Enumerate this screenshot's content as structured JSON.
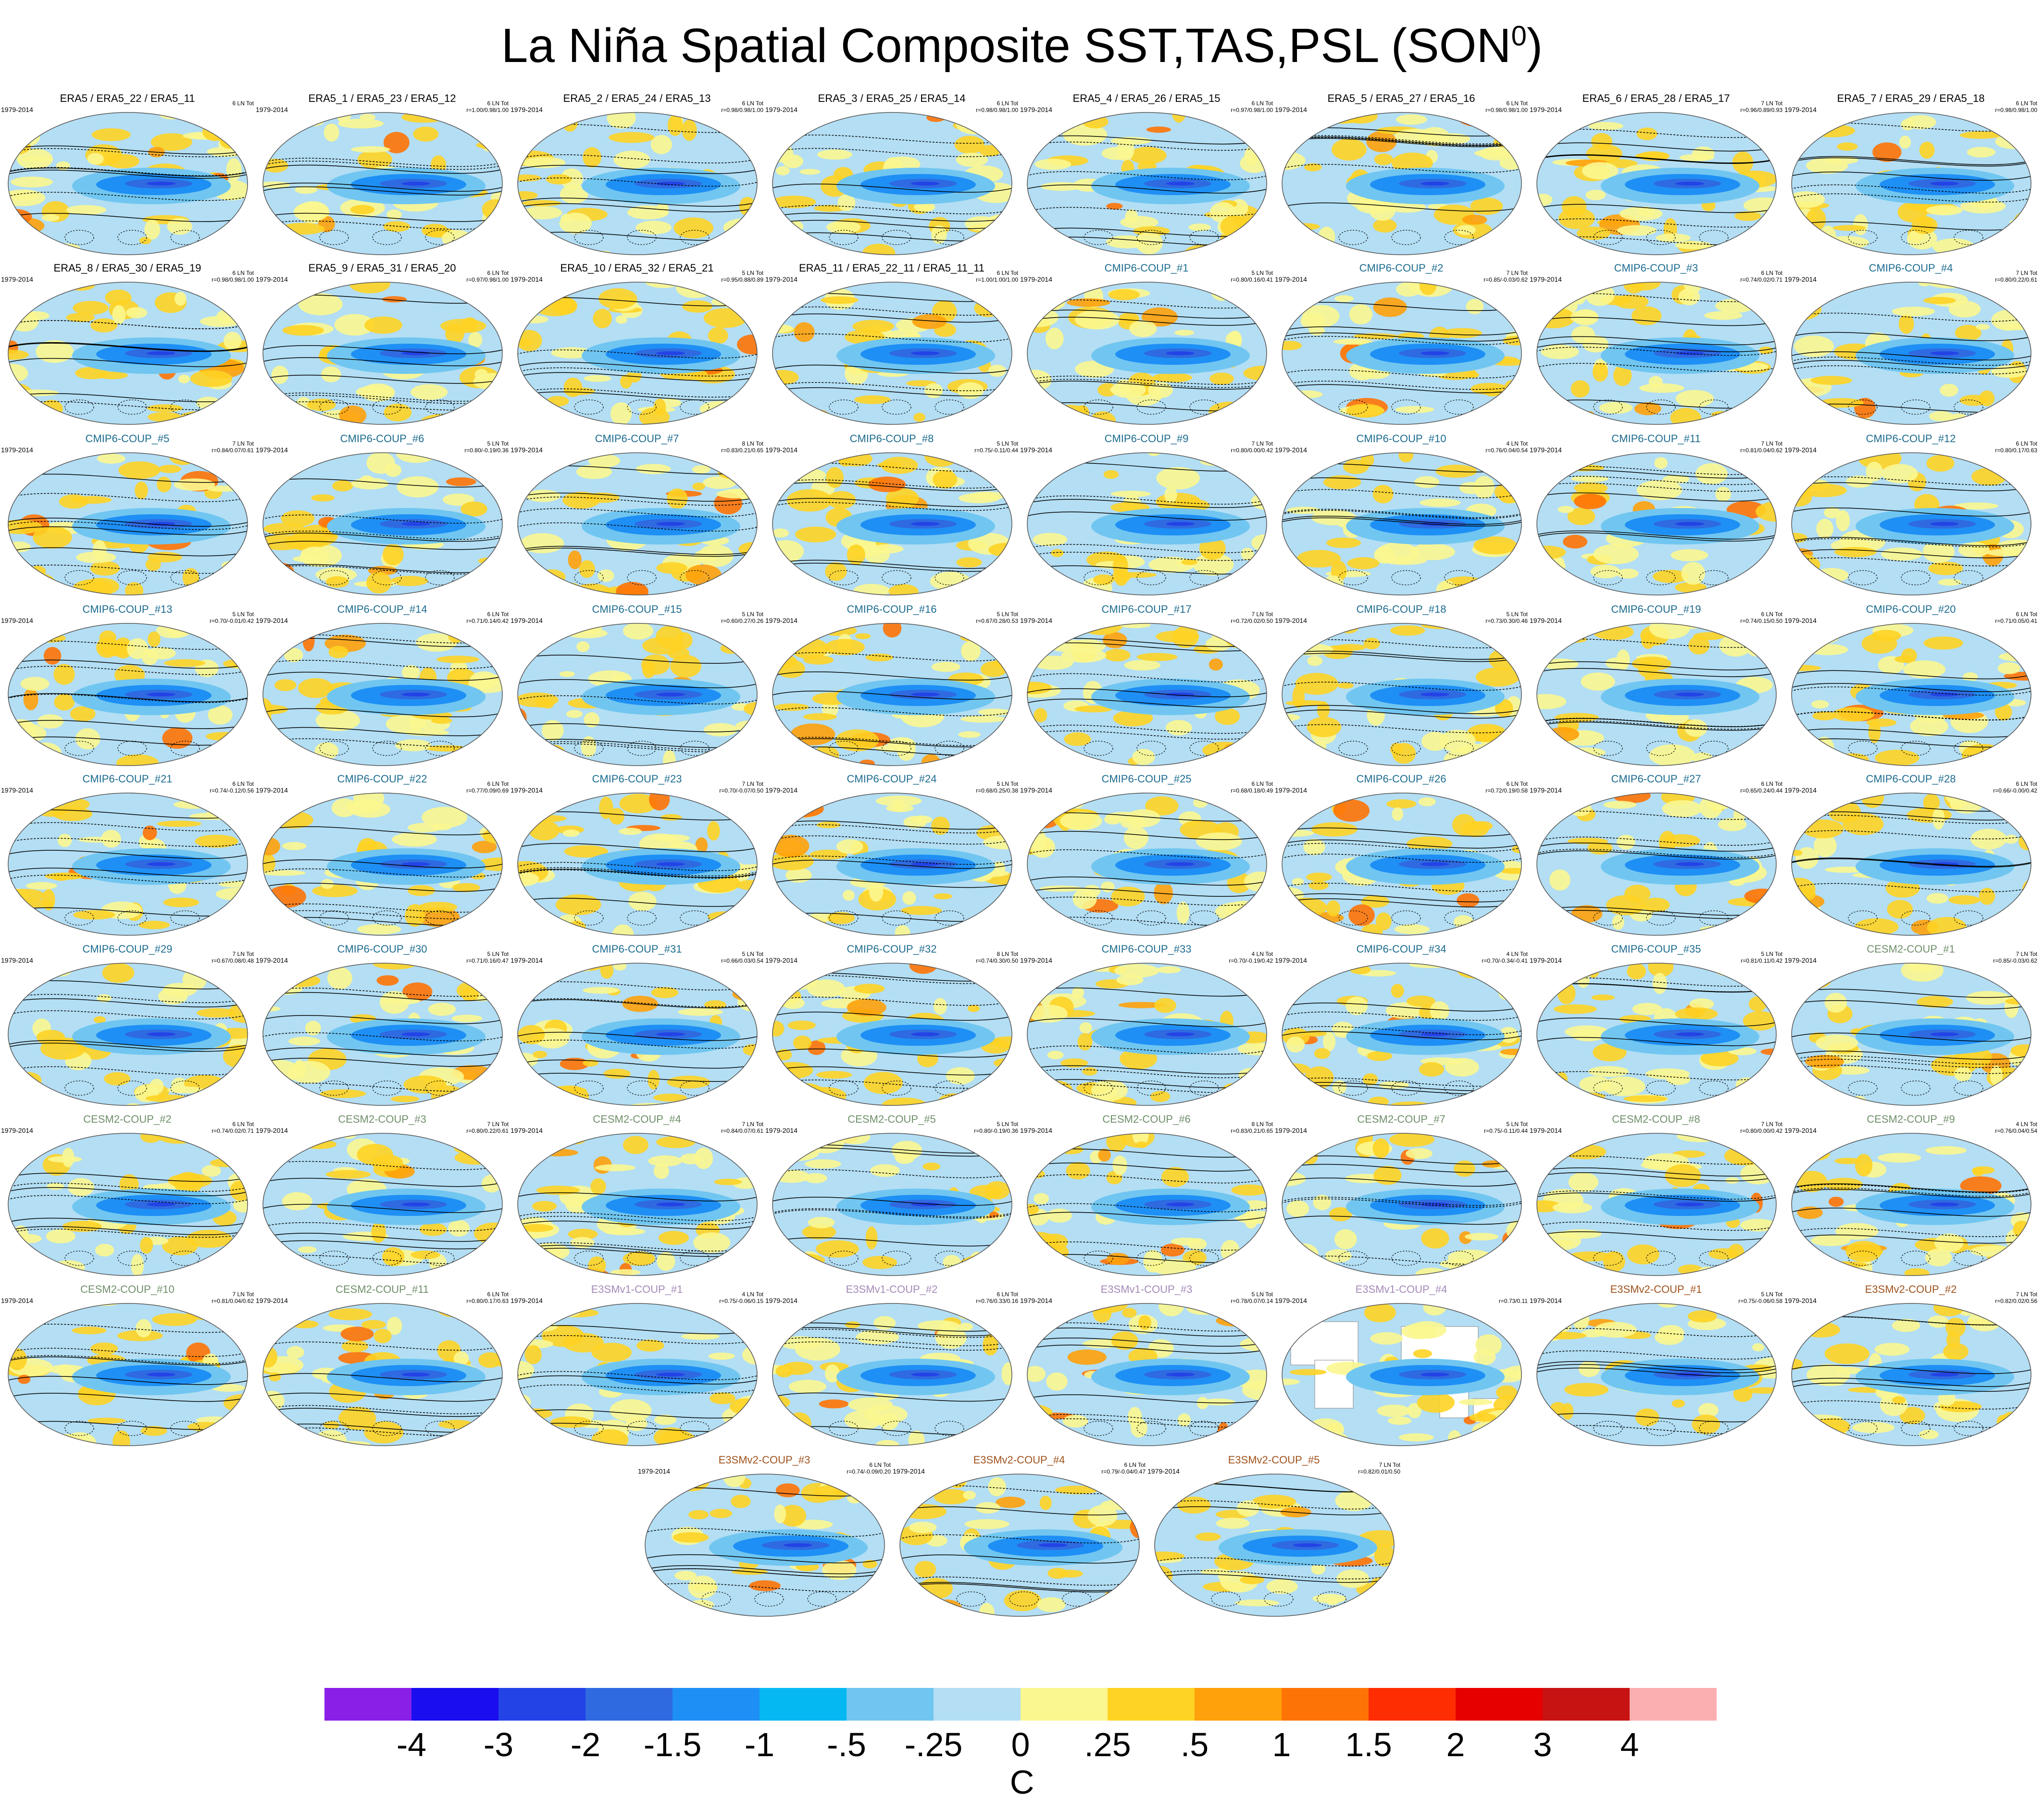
{
  "title": "La Niña Spatial Composite SST,TAS,PSL (SON",
  "title_sup": "0",
  "title_close": ")",
  "colors": {
    "era5": "#000000",
    "cmip6": "#1b6b8f",
    "cesm2": "#6f8f6a",
    "e3smv1": "#a48ab8",
    "e3smv2": "#a0521c"
  },
  "rows": [
    {
      "panels": [
        {
          "title": "ERA5 / ERA5_22 / ERA5_11",
          "years": "1979-2014",
          "count": "6 LN Tot",
          "stats": "",
          "group": "era5",
          "variant": "full"
        },
        {
          "title": "ERA5_1 / ERA5_23 / ERA5_12",
          "years": "1979-2014",
          "count": "6 LN Tot",
          "stats": "r=1.00/0.98/1.00",
          "group": "era5",
          "variant": "full"
        },
        {
          "title": "ERA5_2 / ERA5_24 / ERA5_13",
          "years": "1979-2014",
          "count": "6 LN Tot",
          "stats": "r=0.98/0.98/1.00",
          "group": "era5",
          "variant": "full"
        },
        {
          "title": "ERA5_3 / ERA5_25 / ERA5_14",
          "years": "1979-2014",
          "count": "6 LN Tot",
          "stats": "r=0.98/0.98/1.00",
          "group": "era5",
          "variant": "full"
        },
        {
          "title": "ERA5_4 / ERA5_26 / ERA5_15",
          "years": "1979-2014",
          "count": "6 LN Tot",
          "stats": "r=0.97/0.98/1.00",
          "group": "era5",
          "variant": "full"
        },
        {
          "title": "ERA5_5 / ERA5_27 / ERA5_16",
          "years": "1979-2014",
          "count": "6 LN Tot",
          "stats": "r=0.98/0.98/1.00",
          "group": "era5",
          "variant": "full"
        },
        {
          "title": "ERA5_6 / ERA5_28 / ERA5_17",
          "years": "1979-2014",
          "count": "7 LN Tot",
          "stats": "r=0.96/0.89/0.93",
          "group": "era5",
          "variant": "full"
        },
        {
          "title": "ERA5_7 / ERA5_29 / ERA5_18",
          "years": "1979-2014",
          "count": "6 LN Tot",
          "stats": "r=0.98/0.98/1.00",
          "group": "era5",
          "variant": "full"
        }
      ]
    },
    {
      "panels": [
        {
          "title": "ERA5_8 / ERA5_30 / ERA5_19",
          "years": "1979-2014",
          "count": "6 LN Tot",
          "stats": "r=0.98/0.98/1.00",
          "group": "era5",
          "variant": "full"
        },
        {
          "title": "ERA5_9 / ERA5_31 / ERA5_20",
          "years": "1979-2014",
          "count": "6 LN Tot",
          "stats": "r=0.97/0.98/1.00",
          "group": "era5",
          "variant": "full"
        },
        {
          "title": "ERA5_10 / ERA5_32 / ERA5_21",
          "years": "1979-2014",
          "count": "5 LN Tot",
          "stats": "r=0.95/0.88/0.89",
          "group": "era5",
          "variant": "full"
        },
        {
          "title": "ERA5_11 / ERA5_22_11 / ERA5_11_11",
          "years": "1979-2014",
          "count": "6 LN Tot",
          "stats": "r=1.00/1.00/1.00",
          "group": "era5",
          "variant": "full"
        },
        {
          "title": "CMIP6-COUP_#1",
          "years": "1979-2014",
          "count": "5 LN Tot",
          "stats": "r=0.80/0.16/0.41",
          "group": "cmip6",
          "variant": "full"
        },
        {
          "title": "CMIP6-COUP_#2",
          "years": "1979-2014",
          "count": "7 LN Tot",
          "stats": "r=0.85/-0.03/0.62",
          "group": "cmip6",
          "variant": "full"
        },
        {
          "title": "CMIP6-COUP_#3",
          "years": "1979-2014",
          "count": "6 LN Tot",
          "stats": "r=0.74/0.02/0.71",
          "group": "cmip6",
          "variant": "full"
        },
        {
          "title": "CMIP6-COUP_#4",
          "years": "1979-2014",
          "count": "7 LN Tot",
          "stats": "r=0.80/0.22/0.61",
          "group": "cmip6",
          "variant": "full"
        }
      ]
    },
    {
      "panels": [
        {
          "title": "CMIP6-COUP_#5",
          "years": "1979-2014",
          "count": "7 LN Tot",
          "stats": "r=0.84/0.07/0.61",
          "group": "cmip6",
          "variant": "full"
        },
        {
          "title": "CMIP6-COUP_#6",
          "years": "1979-2014",
          "count": "5 LN Tot",
          "stats": "r=0.80/-0.19/0.36",
          "group": "cmip6",
          "variant": "full"
        },
        {
          "title": "CMIP6-COUP_#7",
          "years": "1979-2014",
          "count": "8 LN Tot",
          "stats": "r=0.83/0.21/0.65",
          "group": "cmip6",
          "variant": "full"
        },
        {
          "title": "CMIP6-COUP_#8",
          "years": "1979-2014",
          "count": "5 LN Tot",
          "stats": "r=0.75/-0.11/0.44",
          "group": "cmip6",
          "variant": "full"
        },
        {
          "title": "CMIP6-COUP_#9",
          "years": "1979-2014",
          "count": "7 LN Tot",
          "stats": "r=0.80/0.00/0.42",
          "group": "cmip6",
          "variant": "full"
        },
        {
          "title": "CMIP6-COUP_#10",
          "years": "1979-2014",
          "count": "4 LN Tot",
          "stats": "r=0.76/0.04/0.54",
          "group": "cmip6",
          "variant": "full"
        },
        {
          "title": "CMIP6-COUP_#11",
          "years": "1979-2014",
          "count": "7 LN Tot",
          "stats": "r=0.81/0.04/0.62",
          "group": "cmip6",
          "variant": "full"
        },
        {
          "title": "CMIP6-COUP_#12",
          "years": "1979-2014",
          "count": "6 LN Tot",
          "stats": "r=0.80/0.17/0.63",
          "group": "cmip6",
          "variant": "full"
        }
      ]
    },
    {
      "panels": [
        {
          "title": "CMIP6-COUP_#13",
          "years": "1979-2014",
          "count": "5 LN Tot",
          "stats": "r=0.70/-0.01/0.42",
          "group": "cmip6",
          "variant": "full"
        },
        {
          "title": "CMIP6-COUP_#14",
          "years": "1979-2014",
          "count": "6 LN Tot",
          "stats": "r=0.71/0.14/0.42",
          "group": "cmip6",
          "variant": "full"
        },
        {
          "title": "CMIP6-COUP_#15",
          "years": "1979-2014",
          "count": "5 LN Tot",
          "stats": "r=0.60/0.27/0.26",
          "group": "cmip6",
          "variant": "full"
        },
        {
          "title": "CMIP6-COUP_#16",
          "years": "1979-2014",
          "count": "5 LN Tot",
          "stats": "r=0.67/0.28/0.53",
          "group": "cmip6",
          "variant": "full"
        },
        {
          "title": "CMIP6-COUP_#17",
          "years": "1979-2014",
          "count": "7 LN Tot",
          "stats": "r=0.72/0.02/0.50",
          "group": "cmip6",
          "variant": "full"
        },
        {
          "title": "CMIP6-COUP_#18",
          "years": "1979-2014",
          "count": "5 LN Tot",
          "stats": "r=0.73/0.30/0.46",
          "group": "cmip6",
          "variant": "full"
        },
        {
          "title": "CMIP6-COUP_#19",
          "years": "1979-2014",
          "count": "6 LN Tot",
          "stats": "r=0.74/0.15/0.50",
          "group": "cmip6",
          "variant": "full"
        },
        {
          "title": "CMIP6-COUP_#20",
          "years": "1979-2014",
          "count": "6 LN Tot",
          "stats": "r=0.71/0.05/0.41",
          "group": "cmip6",
          "variant": "full"
        }
      ]
    },
    {
      "panels": [
        {
          "title": "CMIP6-COUP_#21",
          "years": "1979-2014",
          "count": "6 LN Tot",
          "stats": "r=0.74/-0.12/0.56",
          "group": "cmip6",
          "variant": "full"
        },
        {
          "title": "CMIP6-COUP_#22",
          "years": "1979-2014",
          "count": "6 LN Tot",
          "stats": "r=0.77/0.09/0.69",
          "group": "cmip6",
          "variant": "full"
        },
        {
          "title": "CMIP6-COUP_#23",
          "years": "1979-2014",
          "count": "7 LN Tot",
          "stats": "r=0.70/-0.07/0.50",
          "group": "cmip6",
          "variant": "full"
        },
        {
          "title": "CMIP6-COUP_#24",
          "years": "1979-2014",
          "count": "5 LN Tot",
          "stats": "r=0.68/0.25/0.38",
          "group": "cmip6",
          "variant": "full"
        },
        {
          "title": "CMIP6-COUP_#25",
          "years": "1979-2014",
          "count": "6 LN Tot",
          "stats": "r=0.68/0.18/0.49",
          "group": "cmip6",
          "variant": "full"
        },
        {
          "title": "CMIP6-COUP_#26",
          "years": "1979-2014",
          "count": "6 LN Tot",
          "stats": "r=0.72/0.19/0.58",
          "group": "cmip6",
          "variant": "full"
        },
        {
          "title": "CMIP6-COUP_#27",
          "years": "1979-2014",
          "count": "6 LN Tot",
          "stats": "r=0.65/0.24/0.44",
          "group": "cmip6",
          "variant": "full"
        },
        {
          "title": "CMIP6-COUP_#28",
          "years": "1979-2014",
          "count": "6 LN Tot",
          "stats": "r=0.66/-0.00/0.42",
          "group": "cmip6",
          "variant": "full"
        }
      ]
    },
    {
      "panels": [
        {
          "title": "CMIP6-COUP_#29",
          "years": "1979-2014",
          "count": "7 LN Tot",
          "stats": "r=0.67/0.08/0.48",
          "group": "cmip6",
          "variant": "full"
        },
        {
          "title": "CMIP6-COUP_#30",
          "years": "1979-2014",
          "count": "5 LN Tot",
          "stats": "r=0.71/0.16/0.47",
          "group": "cmip6",
          "variant": "full"
        },
        {
          "title": "CMIP6-COUP_#31",
          "years": "1979-2014",
          "count": "5 LN Tot",
          "stats": "r=0.66/0.03/0.54",
          "group": "cmip6",
          "variant": "full"
        },
        {
          "title": "CMIP6-COUP_#32",
          "years": "1979-2014",
          "count": "8 LN Tot",
          "stats": "r=0.74/0.30/0.50",
          "group": "cmip6",
          "variant": "full"
        },
        {
          "title": "CMIP6-COUP_#33",
          "years": "1979-2014",
          "count": "4 LN Tot",
          "stats": "r=0.70/-0.19/0.42",
          "group": "cmip6",
          "variant": "full"
        },
        {
          "title": "CMIP6-COUP_#34",
          "years": "1979-2014",
          "count": "4 LN Tot",
          "stats": "r=0.70/-0.34/-0.41",
          "group": "cmip6",
          "variant": "full"
        },
        {
          "title": "CMIP6-COUP_#35",
          "years": "1979-2014",
          "count": "5 LN Tot",
          "stats": "r=0.81/0.11/0.42",
          "group": "cmip6",
          "variant": "full"
        },
        {
          "title": "CESM2-COUP_#1",
          "years": "1979-2014",
          "count": "7 LN Tot",
          "stats": "r=0.85/-0.03/0.62",
          "group": "cesm2",
          "variant": "full"
        }
      ]
    },
    {
      "panels": [
        {
          "title": "CESM2-COUP_#2",
          "years": "1979-2014",
          "count": "6 LN Tot",
          "stats": "r=0.74/0.02/0.71",
          "group": "cesm2",
          "variant": "full"
        },
        {
          "title": "CESM2-COUP_#3",
          "years": "1979-2014",
          "count": "7 LN Tot",
          "stats": "r=0.80/0.22/0.61",
          "group": "cesm2",
          "variant": "full"
        },
        {
          "title": "CESM2-COUP_#4",
          "years": "1979-2014",
          "count": "7 LN Tot",
          "stats": "r=0.84/0.07/0.61",
          "group": "cesm2",
          "variant": "full"
        },
        {
          "title": "CESM2-COUP_#5",
          "years": "1979-2014",
          "count": "5 LN Tot",
          "stats": "r=0.80/-0.19/0.36",
          "group": "cesm2",
          "variant": "full"
        },
        {
          "title": "CESM2-COUP_#6",
          "years": "1979-2014",
          "count": "8 LN Tot",
          "stats": "r=0.83/0.21/0.65",
          "group": "cesm2",
          "variant": "full"
        },
        {
          "title": "CESM2-COUP_#7",
          "years": "1979-2014",
          "count": "5 LN Tot",
          "stats": "r=0.75/-0.11/0.44",
          "group": "cesm2",
          "variant": "full"
        },
        {
          "title": "CESM2-COUP_#8",
          "years": "1979-2014",
          "count": "7 LN Tot",
          "stats": "r=0.80/0.00/0.42",
          "group": "cesm2",
          "variant": "full"
        },
        {
          "title": "CESM2-COUP_#9",
          "years": "1979-2014",
          "count": "4 LN Tot",
          "stats": "r=0.76/0.04/0.54",
          "group": "cesm2",
          "variant": "full"
        }
      ]
    },
    {
      "panels": [
        {
          "title": "CESM2-COUP_#10",
          "years": "1979-2014",
          "count": "7 LN Tot",
          "stats": "r=0.81/0.04/0.62",
          "group": "cesm2",
          "variant": "full"
        },
        {
          "title": "CESM2-COUP_#11",
          "years": "1979-2014",
          "count": "6 LN Tot",
          "stats": "r=0.80/0.17/0.63",
          "group": "cesm2",
          "variant": "full"
        },
        {
          "title": "E3SMv1-COUP_#1",
          "years": "1979-2014",
          "count": "4 LN Tot",
          "stats": "r=0.75/-0.06/0.15",
          "group": "e3smv1",
          "variant": "full"
        },
        {
          "title": "E3SMv1-COUP_#2",
          "years": "1979-2014",
          "count": "6 LN Tot",
          "stats": "r=0.76/0.33/0.16",
          "group": "e3smv1",
          "variant": "full"
        },
        {
          "title": "E3SMv1-COUP_#3",
          "years": "1979-2014",
          "count": "5 LN Tot",
          "stats": "r=0.78/0.07/0.14",
          "group": "e3smv1",
          "variant": "full"
        },
        {
          "title": "E3SMv1-COUP_#4",
          "years": "1979-2014",
          "count": "",
          "stats": "r=0.73/0.11",
          "group": "e3smv1",
          "variant": "sst"
        },
        {
          "title": "E3SMv2-COUP_#1",
          "years": "1979-2014",
          "count": "5 LN Tot",
          "stats": "r=0.75/-0.06/0.58",
          "group": "e3smv2",
          "variant": "full"
        },
        {
          "title": "E3SMv2-COUP_#2",
          "years": "1979-2014",
          "count": "7 LN Tot",
          "stats": "r=0.82/0.02/0.56",
          "group": "e3smv2",
          "variant": "full"
        }
      ]
    },
    {
      "panels": [
        {
          "title": "E3SMv2-COUP_#3",
          "years": "1979-2014",
          "count": "6 LN Tot",
          "stats": "r=0.74/-0.09/0.20",
          "group": "e3smv2",
          "variant": "full"
        },
        {
          "title": "E3SMv2-COUP_#4",
          "years": "1979-2014",
          "count": "6 LN Tot",
          "stats": "r=0.79/-0.04/0.47",
          "group": "e3smv2",
          "variant": "full"
        },
        {
          "title": "E3SMv2-COUP_#5",
          "years": "1979-2014",
          "count": "7 LN Tot",
          "stats": "r=0.82/0.01/0.50",
          "group": "e3smv2",
          "variant": "full"
        }
      ]
    }
  ],
  "colorbar": {
    "unit": "C",
    "colors": [
      "#8a1fe8",
      "#1a0df0",
      "#2343e6",
      "#2f6ae0",
      "#1e8ff5",
      "#06b8f1",
      "#70c6f0",
      "#b3def4",
      "#fbf790",
      "#fed324",
      "#fea10a",
      "#fe7306",
      "#fe2e02",
      "#e60000",
      "#c81313",
      "#fbafb0"
    ],
    "ticks": [
      "-4",
      "-3",
      "-2",
      "-1.5",
      "-1",
      "-.5",
      "-.25",
      "0",
      ".25",
      ".5",
      "1",
      "1.5",
      "2",
      "3",
      "4"
    ]
  }
}
